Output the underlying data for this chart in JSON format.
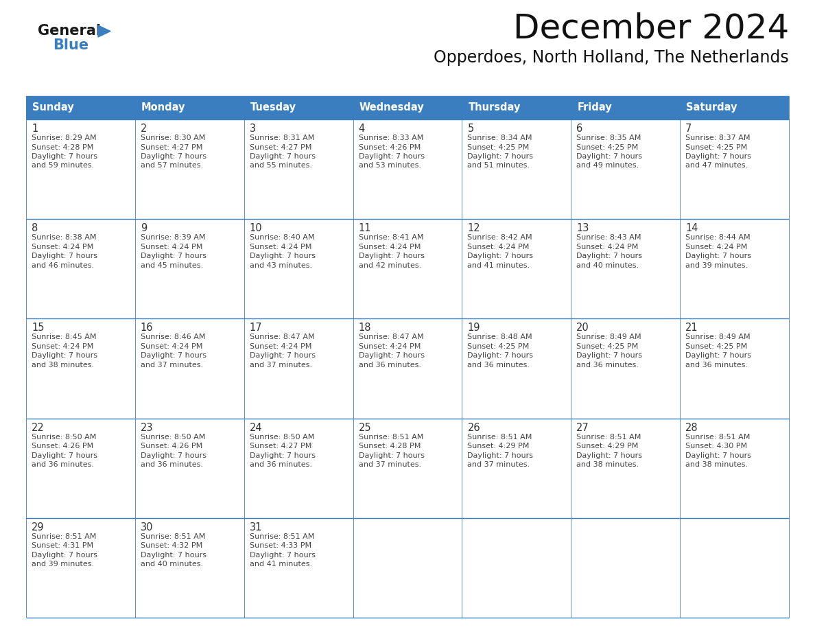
{
  "title": "December 2024",
  "subtitle": "Opperdoes, North Holland, The Netherlands",
  "header_color": "#3a7ebf",
  "header_text_color": "#ffffff",
  "border_color": "#3a7ebf",
  "days_of_week": [
    "Sunday",
    "Monday",
    "Tuesday",
    "Wednesday",
    "Thursday",
    "Friday",
    "Saturday"
  ],
  "calendar": [
    [
      {
        "day": "1",
        "sunrise": "8:29 AM",
        "sunset": "4:28 PM",
        "daylight": "7 hours",
        "daylight2": "and 59 minutes."
      },
      {
        "day": "2",
        "sunrise": "8:30 AM",
        "sunset": "4:27 PM",
        "daylight": "7 hours",
        "daylight2": "and 57 minutes."
      },
      {
        "day": "3",
        "sunrise": "8:31 AM",
        "sunset": "4:27 PM",
        "daylight": "7 hours",
        "daylight2": "and 55 minutes."
      },
      {
        "day": "4",
        "sunrise": "8:33 AM",
        "sunset": "4:26 PM",
        "daylight": "7 hours",
        "daylight2": "and 53 minutes."
      },
      {
        "day": "5",
        "sunrise": "8:34 AM",
        "sunset": "4:25 PM",
        "daylight": "7 hours",
        "daylight2": "and 51 minutes."
      },
      {
        "day": "6",
        "sunrise": "8:35 AM",
        "sunset": "4:25 PM",
        "daylight": "7 hours",
        "daylight2": "and 49 minutes."
      },
      {
        "day": "7",
        "sunrise": "8:37 AM",
        "sunset": "4:25 PM",
        "daylight": "7 hours",
        "daylight2": "and 47 minutes."
      }
    ],
    [
      {
        "day": "8",
        "sunrise": "8:38 AM",
        "sunset": "4:24 PM",
        "daylight": "7 hours",
        "daylight2": "and 46 minutes."
      },
      {
        "day": "9",
        "sunrise": "8:39 AM",
        "sunset": "4:24 PM",
        "daylight": "7 hours",
        "daylight2": "and 45 minutes."
      },
      {
        "day": "10",
        "sunrise": "8:40 AM",
        "sunset": "4:24 PM",
        "daylight": "7 hours",
        "daylight2": "and 43 minutes."
      },
      {
        "day": "11",
        "sunrise": "8:41 AM",
        "sunset": "4:24 PM",
        "daylight": "7 hours",
        "daylight2": "and 42 minutes."
      },
      {
        "day": "12",
        "sunrise": "8:42 AM",
        "sunset": "4:24 PM",
        "daylight": "7 hours",
        "daylight2": "and 41 minutes."
      },
      {
        "day": "13",
        "sunrise": "8:43 AM",
        "sunset": "4:24 PM",
        "daylight": "7 hours",
        "daylight2": "and 40 minutes."
      },
      {
        "day": "14",
        "sunrise": "8:44 AM",
        "sunset": "4:24 PM",
        "daylight": "7 hours",
        "daylight2": "and 39 minutes."
      }
    ],
    [
      {
        "day": "15",
        "sunrise": "8:45 AM",
        "sunset": "4:24 PM",
        "daylight": "7 hours",
        "daylight2": "and 38 minutes."
      },
      {
        "day": "16",
        "sunrise": "8:46 AM",
        "sunset": "4:24 PM",
        "daylight": "7 hours",
        "daylight2": "and 37 minutes."
      },
      {
        "day": "17",
        "sunrise": "8:47 AM",
        "sunset": "4:24 PM",
        "daylight": "7 hours",
        "daylight2": "and 37 minutes."
      },
      {
        "day": "18",
        "sunrise": "8:47 AM",
        "sunset": "4:24 PM",
        "daylight": "7 hours",
        "daylight2": "and 36 minutes."
      },
      {
        "day": "19",
        "sunrise": "8:48 AM",
        "sunset": "4:25 PM",
        "daylight": "7 hours",
        "daylight2": "and 36 minutes."
      },
      {
        "day": "20",
        "sunrise": "8:49 AM",
        "sunset": "4:25 PM",
        "daylight": "7 hours",
        "daylight2": "and 36 minutes."
      },
      {
        "day": "21",
        "sunrise": "8:49 AM",
        "sunset": "4:25 PM",
        "daylight": "7 hours",
        "daylight2": "and 36 minutes."
      }
    ],
    [
      {
        "day": "22",
        "sunrise": "8:50 AM",
        "sunset": "4:26 PM",
        "daylight": "7 hours",
        "daylight2": "and 36 minutes."
      },
      {
        "day": "23",
        "sunrise": "8:50 AM",
        "sunset": "4:26 PM",
        "daylight": "7 hours",
        "daylight2": "and 36 minutes."
      },
      {
        "day": "24",
        "sunrise": "8:50 AM",
        "sunset": "4:27 PM",
        "daylight": "7 hours",
        "daylight2": "and 36 minutes."
      },
      {
        "day": "25",
        "sunrise": "8:51 AM",
        "sunset": "4:28 PM",
        "daylight": "7 hours",
        "daylight2": "and 37 minutes."
      },
      {
        "day": "26",
        "sunrise": "8:51 AM",
        "sunset": "4:29 PM",
        "daylight": "7 hours",
        "daylight2": "and 37 minutes."
      },
      {
        "day": "27",
        "sunrise": "8:51 AM",
        "sunset": "4:29 PM",
        "daylight": "7 hours",
        "daylight2": "and 38 minutes."
      },
      {
        "day": "28",
        "sunrise": "8:51 AM",
        "sunset": "4:30 PM",
        "daylight": "7 hours",
        "daylight2": "and 38 minutes."
      }
    ],
    [
      {
        "day": "29",
        "sunrise": "8:51 AM",
        "sunset": "4:31 PM",
        "daylight": "7 hours",
        "daylight2": "and 39 minutes."
      },
      {
        "day": "30",
        "sunrise": "8:51 AM",
        "sunset": "4:32 PM",
        "daylight": "7 hours",
        "daylight2": "and 40 minutes."
      },
      {
        "day": "31",
        "sunrise": "8:51 AM",
        "sunset": "4:33 PM",
        "daylight": "7 hours",
        "daylight2": "and 41 minutes."
      },
      null,
      null,
      null,
      null
    ]
  ]
}
